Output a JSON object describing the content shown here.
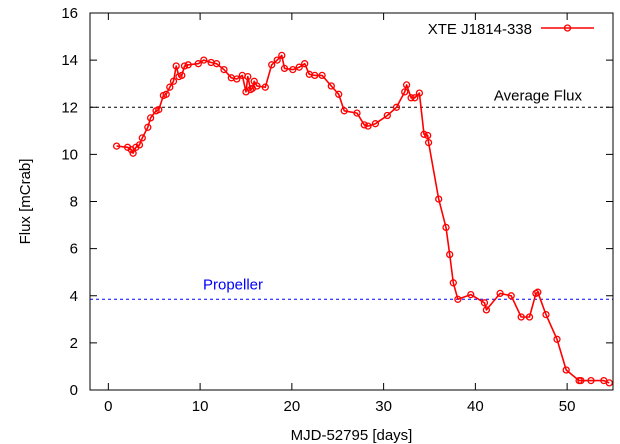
{
  "chart_data": {
    "type": "line",
    "title": "",
    "xlabel": "MJD-52795 [days]",
    "ylabel": "Flux [mCrab]",
    "xlim": [
      -2,
      55
    ],
    "ylim": [
      0,
      16
    ],
    "xticks": [
      0,
      10,
      20,
      30,
      40,
      50
    ],
    "yticks": [
      0,
      2,
      4,
      6,
      8,
      10,
      12,
      14,
      16
    ],
    "grid": false,
    "legend_position": "top-right",
    "series": [
      {
        "name": "XTE J1814-338",
        "color": "#ff0000",
        "marker": "open-circle",
        "points": [
          [
            0.9,
            10.35
          ],
          [
            2.1,
            10.3
          ],
          [
            2.5,
            10.2
          ],
          [
            2.7,
            10.05
          ],
          [
            3.0,
            10.3
          ],
          [
            3.4,
            10.4
          ],
          [
            3.7,
            10.7
          ],
          [
            4.3,
            11.15
          ],
          [
            4.6,
            11.55
          ],
          [
            5.2,
            11.85
          ],
          [
            5.5,
            11.9
          ],
          [
            6.0,
            12.5
          ],
          [
            6.3,
            12.55
          ],
          [
            6.7,
            12.85
          ],
          [
            7.1,
            13.1
          ],
          [
            7.4,
            13.75
          ],
          [
            7.7,
            13.3
          ],
          [
            8.0,
            13.35
          ],
          [
            8.3,
            13.75
          ],
          [
            8.7,
            13.8
          ],
          [
            9.8,
            13.85
          ],
          [
            10.4,
            14.0
          ],
          [
            11.2,
            13.9
          ],
          [
            11.8,
            13.85
          ],
          [
            12.6,
            13.6
          ],
          [
            13.4,
            13.25
          ],
          [
            14.0,
            13.2
          ],
          [
            14.6,
            13.35
          ],
          [
            15.0,
            12.65
          ],
          [
            15.2,
            13.3
          ],
          [
            15.5,
            12.75
          ],
          [
            15.7,
            12.8
          ],
          [
            15.9,
            13.1
          ],
          [
            16.2,
            12.9
          ],
          [
            17.1,
            12.85
          ],
          [
            17.8,
            13.8
          ],
          [
            18.4,
            14.0
          ],
          [
            18.9,
            14.2
          ],
          [
            19.2,
            13.65
          ],
          [
            20.1,
            13.6
          ],
          [
            20.8,
            13.7
          ],
          [
            21.4,
            13.85
          ],
          [
            21.9,
            13.4
          ],
          [
            22.5,
            13.35
          ],
          [
            23.3,
            13.35
          ],
          [
            24.3,
            12.9
          ],
          [
            25.1,
            12.55
          ],
          [
            25.7,
            11.85
          ],
          [
            27.1,
            11.75
          ],
          [
            27.9,
            11.25
          ],
          [
            28.3,
            11.2
          ],
          [
            29.1,
            11.3
          ],
          [
            30.4,
            11.65
          ],
          [
            31.4,
            12.0
          ],
          [
            32.3,
            12.65
          ],
          [
            32.5,
            12.95
          ],
          [
            33.0,
            12.4
          ],
          [
            33.4,
            12.4
          ],
          [
            33.9,
            12.6
          ],
          [
            34.4,
            10.85
          ],
          [
            34.8,
            10.8
          ],
          [
            34.9,
            10.5
          ],
          [
            36.0,
            8.1
          ],
          [
            36.8,
            6.9
          ],
          [
            37.2,
            5.75
          ],
          [
            37.6,
            4.55
          ],
          [
            38.1,
            3.85
          ],
          [
            39.5,
            4.05
          ],
          [
            41.0,
            3.7
          ],
          [
            41.2,
            3.4
          ],
          [
            42.7,
            4.1
          ],
          [
            43.9,
            4.0
          ],
          [
            45.0,
            3.1
          ],
          [
            45.9,
            3.1
          ],
          [
            46.6,
            4.1
          ],
          [
            46.8,
            4.15
          ],
          [
            47.7,
            3.2
          ],
          [
            48.9,
            2.15
          ],
          [
            49.9,
            0.85
          ],
          [
            51.3,
            0.4
          ],
          [
            51.5,
            0.4
          ],
          [
            52.6,
            0.4
          ],
          [
            54.0,
            0.4
          ],
          [
            54.6,
            0.3
          ]
        ]
      }
    ],
    "reference_lines": [
      {
        "label": "Average Flux",
        "y": 12.0,
        "color": "#000000",
        "style": "dashed"
      },
      {
        "label": "Propeller",
        "y": 3.85,
        "color": "#0000ff",
        "style": "dashed"
      }
    ]
  }
}
